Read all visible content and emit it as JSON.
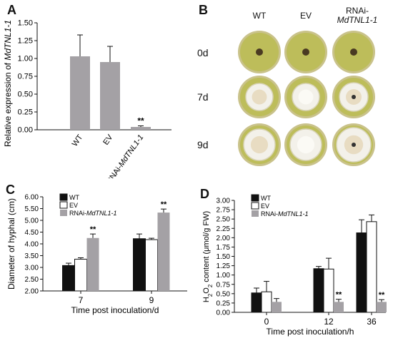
{
  "panels": {
    "A": "A",
    "B": "B",
    "C": "C",
    "D": "D"
  },
  "colors": {
    "wt": "#111111",
    "ev": "#ffffff",
    "rnai": "#a4a1a5",
    "outline": "#111111",
    "dish_rim": "#c9c28a",
    "agar": "#bdbd5a",
    "mycelium": "#f3f1ea"
  },
  "panel_b": {
    "columns": [
      "WT",
      "EV",
      "RNAi-",
      "MdTNL1-1"
    ],
    "rows": [
      "0d",
      "7d",
      "9d"
    ]
  },
  "chart_data": [
    {
      "id": "A",
      "type": "bar",
      "categories": [
        "WT",
        "EV",
        "RNAi-MdTNL1-1"
      ],
      "category_parts": [
        [
          "WT",
          ""
        ],
        [
          "EV",
          ""
        ],
        [
          "RNAi-",
          "MdTNL1-1"
        ]
      ],
      "values": [
        1.03,
        0.95,
        0.04
      ],
      "errors": [
        0.3,
        0.22,
        0.015
      ],
      "significance": [
        "",
        "",
        "**"
      ],
      "ylabel_parts": [
        "Relative expression of ",
        "MdTNL1-1"
      ],
      "ylim": [
        0,
        1.5
      ],
      "yticks": [
        "0.00",
        "0.25",
        "0.50",
        "0.75",
        "1.00",
        "1.25",
        "1.50"
      ]
    },
    {
      "id": "C",
      "type": "bar",
      "categories": [
        "7",
        "9"
      ],
      "series": [
        {
          "name": "WT",
          "values": [
            3.08,
            4.22
          ],
          "errors": [
            0.1,
            0.2
          ],
          "sig": [
            "",
            ""
          ]
        },
        {
          "name": "EV",
          "values": [
            3.35,
            4.18
          ],
          "errors": [
            0.06,
            0.06
          ],
          "sig": [
            "",
            ""
          ]
        },
        {
          "name": "RNAi-MdTNL1-1",
          "name_parts": [
            "RNAi-",
            "MdTNL1-1"
          ],
          "values": [
            4.25,
            5.33
          ],
          "errors": [
            0.17,
            0.15
          ],
          "sig": [
            "**",
            "**"
          ]
        }
      ],
      "ylabel": "Diameter of hyphal  (cm)",
      "xlabel": "Time post inoculation/d",
      "ylim": [
        2.0,
        6.0
      ],
      "yticks": [
        "2.00",
        "2.50",
        "3.00",
        "3.50",
        "4.00",
        "4.50",
        "5.00",
        "5.50",
        "6.00"
      ]
    },
    {
      "id": "D",
      "type": "bar",
      "categories": [
        "0",
        "12",
        "36"
      ],
      "series": [
        {
          "name": "WT",
          "values": [
            0.52,
            1.17,
            2.13
          ],
          "errors": [
            0.13,
            0.06,
            0.35
          ],
          "sig": [
            "",
            "",
            ""
          ]
        },
        {
          "name": "EV",
          "values": [
            0.55,
            1.16,
            2.43
          ],
          "errors": [
            0.28,
            0.29,
            0.18
          ],
          "sig": [
            "",
            "",
            ""
          ]
        },
        {
          "name": "RNAi-MdTNL1-1",
          "name_parts": [
            "RNAi-",
            "MdTNL1-1"
          ],
          "values": [
            0.28,
            0.28,
            0.28
          ],
          "errors": [
            0.09,
            0.07,
            0.06
          ],
          "sig": [
            "",
            "**",
            "**"
          ]
        }
      ],
      "ylabel_parts": [
        "H",
        "2",
        "O",
        "2",
        " content  (μmol/g FW)"
      ],
      "xlabel": "Time post inoculation/h",
      "ylim": [
        0,
        3.0
      ],
      "yticks": [
        "0.00",
        "0.25",
        "0.50",
        "0.75",
        "1.00",
        "1.25",
        "1.50",
        "1.75",
        "2.00",
        "2.25",
        "2.50",
        "2.75",
        "3.00"
      ]
    }
  ]
}
